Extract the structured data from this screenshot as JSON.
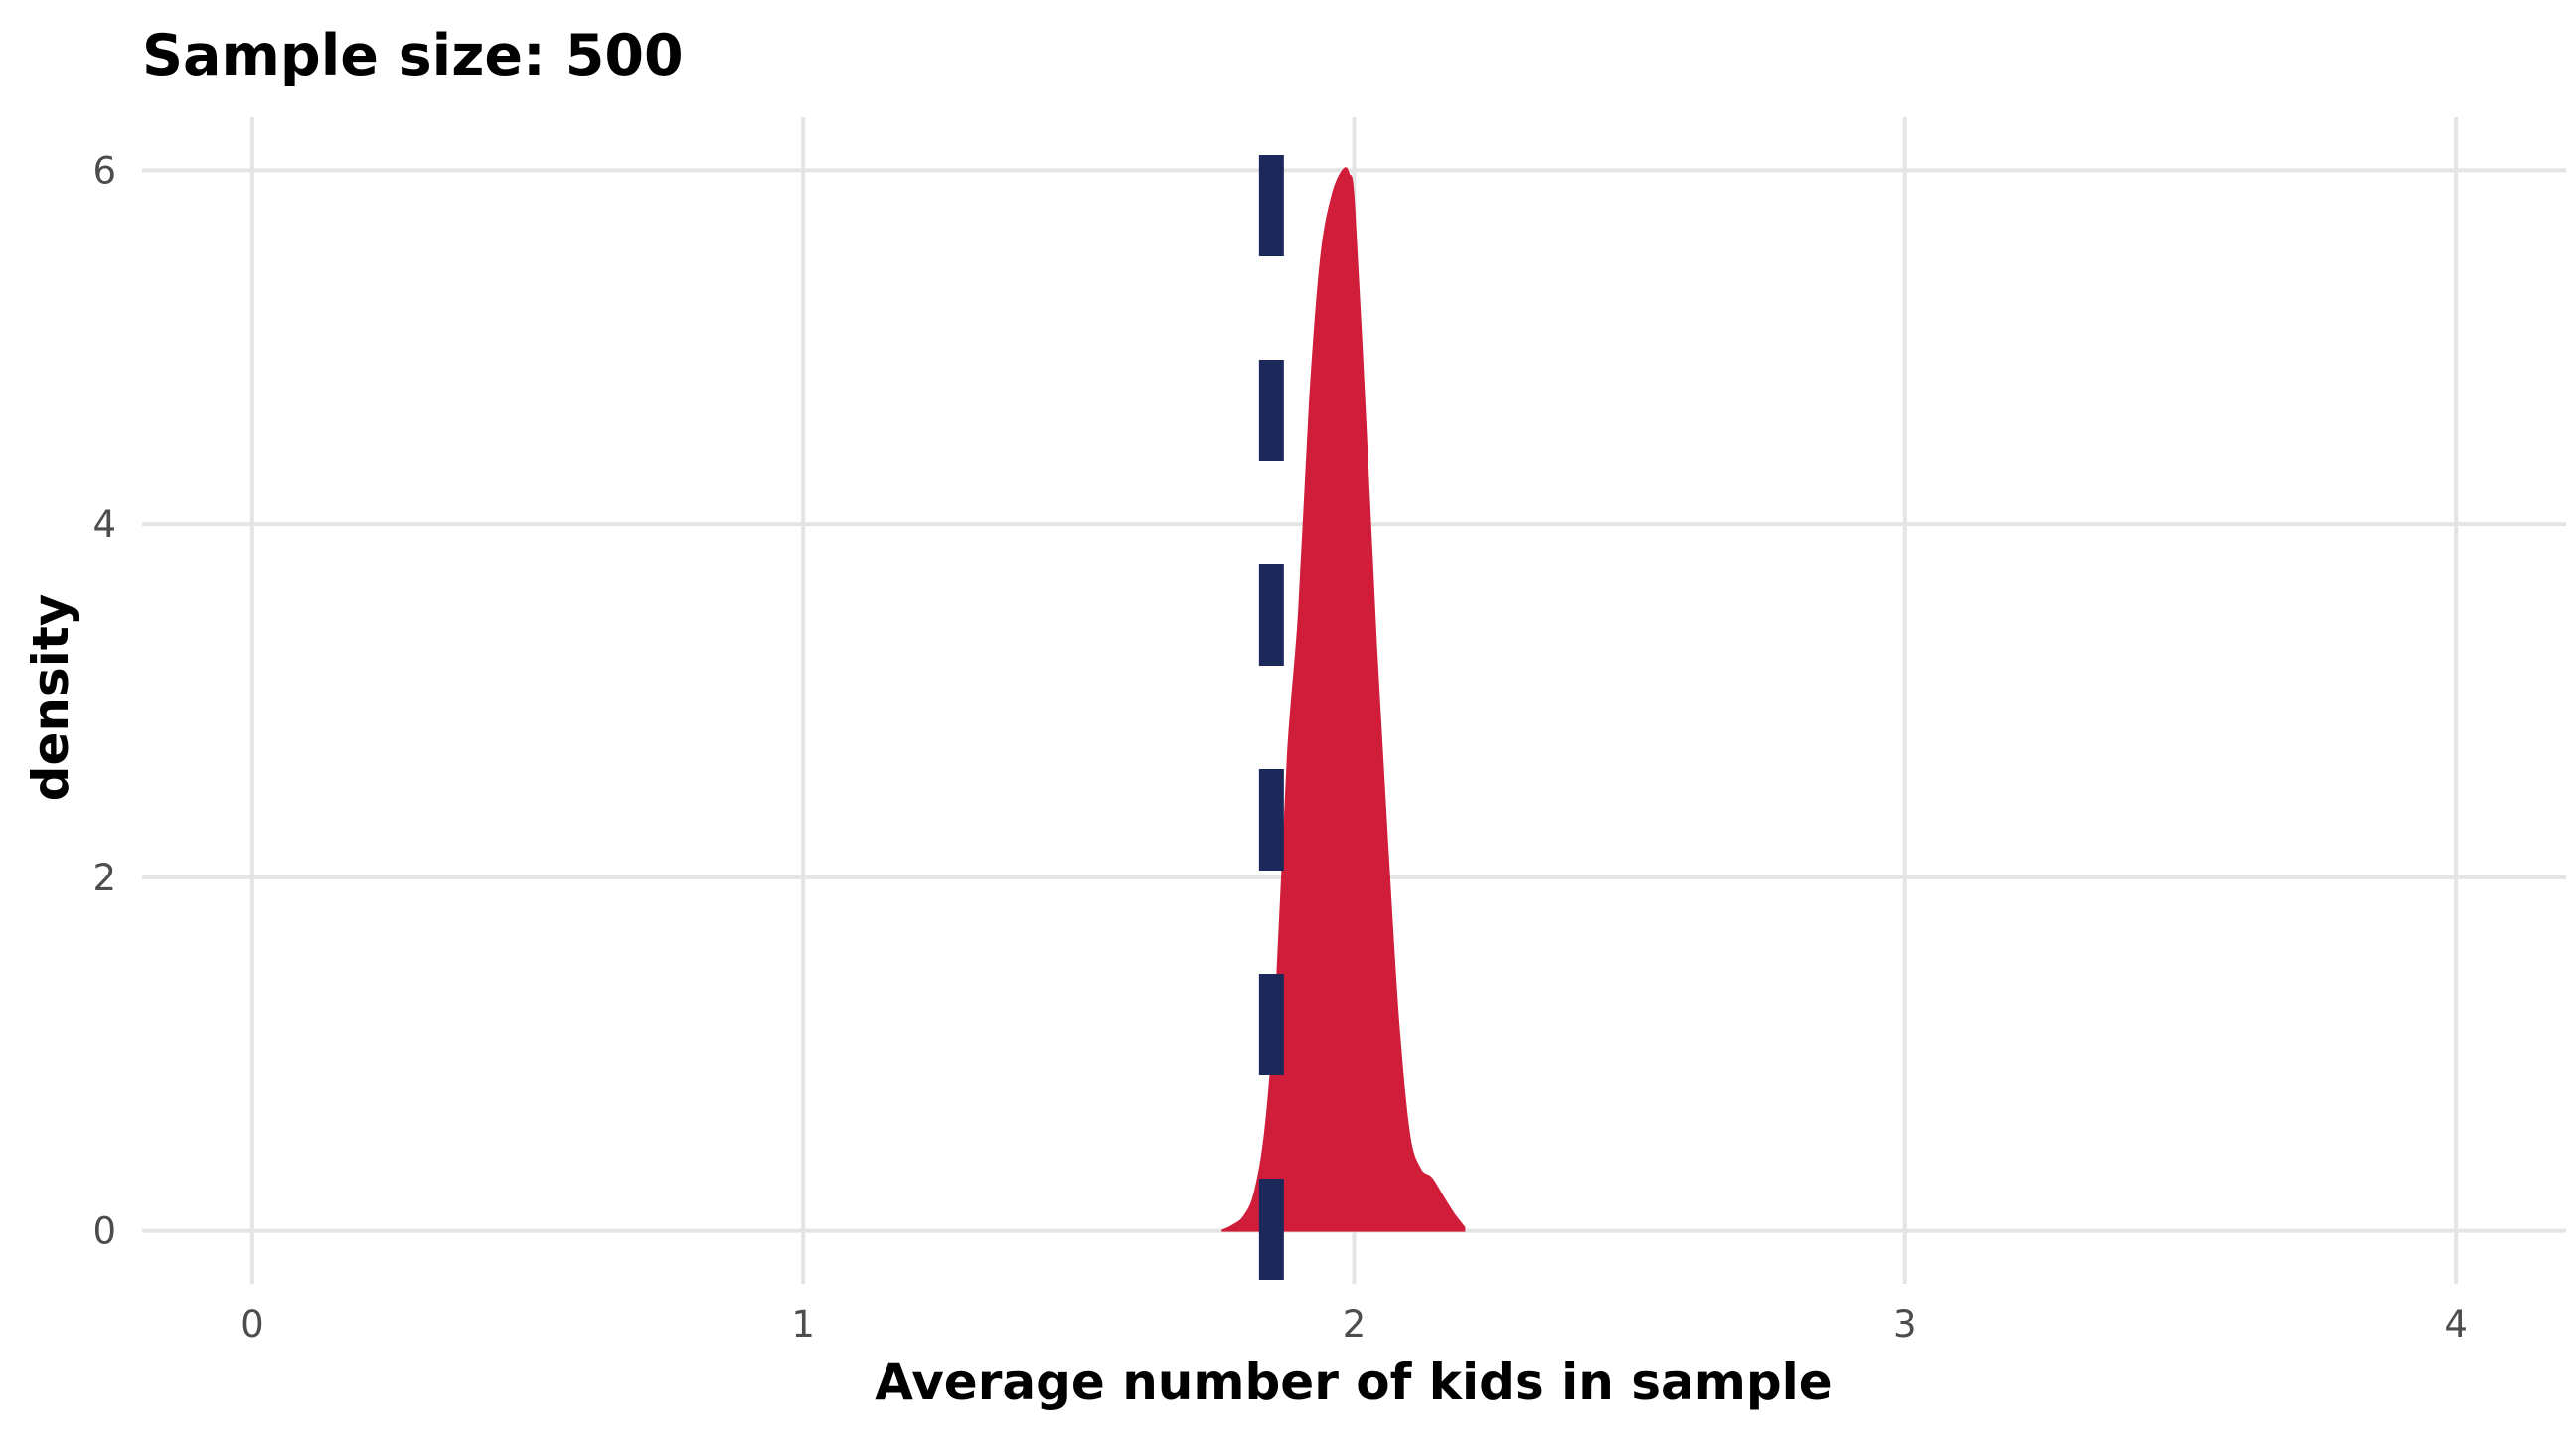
{
  "chart_data": {
    "type": "area",
    "title": "Sample size: 500",
    "xlabel": "Average number of kids in sample",
    "ylabel": "density",
    "xlim": [
      -0.2,
      4.2
    ],
    "ylim": [
      -0.3,
      6.3
    ],
    "x_ticks": [
      0,
      1,
      2,
      3,
      4
    ],
    "x_tick_labels": [
      "0",
      "1",
      "2",
      "3",
      "4"
    ],
    "y_ticks": [
      0,
      2,
      4,
      6
    ],
    "y_tick_labels": [
      "0",
      "2",
      "4",
      "6"
    ],
    "grid": true,
    "legend": "none",
    "density_fill_color": "#d01e3a",
    "reference_line_color": "#1b2859",
    "reference_line": {
      "x": 1.85,
      "style": "dashed"
    },
    "series": [
      {
        "name": "density",
        "x": [
          1.76,
          1.78,
          1.8,
          1.82,
          1.84,
          1.86,
          1.88,
          1.9,
          1.92,
          1.94,
          1.96,
          1.98,
          1.99,
          2.0,
          2.02,
          2.04,
          2.06,
          2.08,
          2.1,
          2.12,
          2.14,
          2.16,
          2.18,
          2.2
        ],
        "y": [
          0.0,
          0.03,
          0.08,
          0.22,
          0.6,
          1.4,
          2.7,
          3.5,
          4.7,
          5.5,
          5.85,
          6.0,
          5.98,
          5.8,
          4.6,
          3.3,
          2.2,
          1.2,
          0.55,
          0.35,
          0.3,
          0.2,
          0.1,
          0.02
        ]
      }
    ]
  }
}
